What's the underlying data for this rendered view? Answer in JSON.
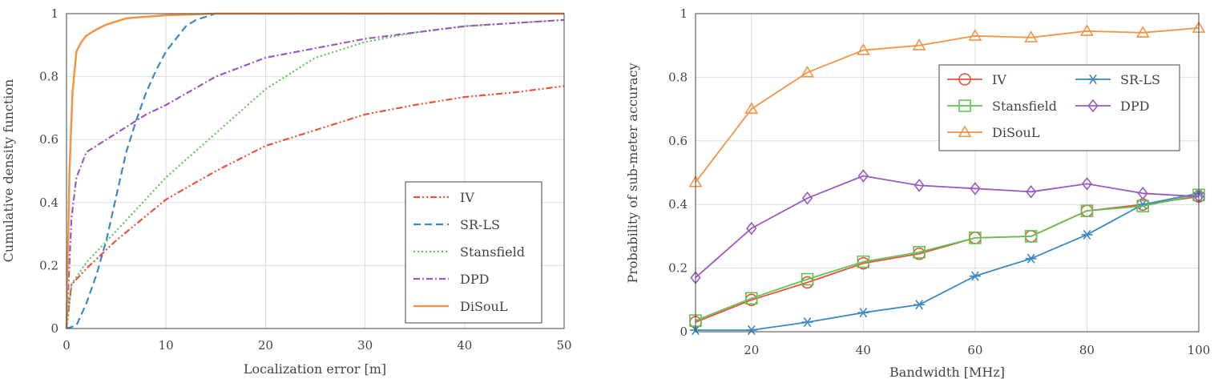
{
  "chart_data": [
    {
      "type": "line",
      "title": "",
      "xlabel": "Localization error [m]",
      "ylabel": "Cumulative density function",
      "xlim": [
        0,
        50
      ],
      "ylim": [
        0,
        1
      ],
      "xticks": [
        0,
        10,
        20,
        30,
        40,
        50
      ],
      "yticks": [
        0,
        0.2,
        0.4,
        0.6,
        0.8,
        1
      ],
      "grid": true,
      "legend_position": "bottom-right",
      "series": [
        {
          "name": "IV",
          "color": "#e8533b",
          "dash": "dash-dot-dot",
          "x": [
            0,
            0.5,
            2,
            5,
            10,
            15,
            20,
            25,
            30,
            35,
            40,
            45,
            50
          ],
          "y": [
            0,
            0.14,
            0.19,
            0.28,
            0.41,
            0.5,
            0.58,
            0.63,
            0.68,
            0.71,
            0.735,
            0.75,
            0.77
          ]
        },
        {
          "name": "SR-LS",
          "color": "#3a89c4",
          "dash": "dashed",
          "x": [
            0,
            1,
            2,
            3,
            4,
            5,
            6,
            7,
            8,
            9,
            10,
            11,
            12,
            13,
            14,
            15,
            20,
            30,
            50
          ],
          "y": [
            0,
            0.01,
            0.08,
            0.17,
            0.28,
            0.42,
            0.56,
            0.66,
            0.75,
            0.82,
            0.88,
            0.92,
            0.96,
            0.98,
            0.99,
            1.0,
            1.0,
            1.0,
            1.0
          ]
        },
        {
          "name": "Stansfield",
          "color": "#63c256",
          "dash": "dotted",
          "x": [
            0,
            0.5,
            2,
            5,
            10,
            15,
            20,
            25,
            30,
            35,
            40,
            45,
            50
          ],
          "y": [
            0,
            0.14,
            0.21,
            0.31,
            0.48,
            0.62,
            0.76,
            0.86,
            0.91,
            0.94,
            0.96,
            0.97,
            0.98
          ]
        },
        {
          "name": "DPD",
          "color": "#9c59c0",
          "dash": "dash-dot",
          "x": [
            0,
            0.5,
            1,
            2,
            4,
            6,
            8,
            10,
            15,
            20,
            25,
            30,
            35,
            40,
            45,
            50
          ],
          "y": [
            0,
            0.35,
            0.48,
            0.56,
            0.6,
            0.64,
            0.68,
            0.71,
            0.8,
            0.86,
            0.89,
            0.92,
            0.94,
            0.96,
            0.97,
            0.98
          ]
        },
        {
          "name": "DiSouL",
          "color": "#f39344",
          "dash": "solid",
          "x": [
            0,
            0.3,
            0.6,
            1,
            1.5,
            2,
            3,
            4,
            5,
            6,
            8,
            10,
            15,
            50
          ],
          "y": [
            0,
            0.5,
            0.75,
            0.88,
            0.91,
            0.93,
            0.95,
            0.965,
            0.975,
            0.985,
            0.99,
            0.995,
            1.0,
            1.0
          ]
        }
      ]
    },
    {
      "type": "line",
      "title": "",
      "xlabel": "Bandwidth [MHz]",
      "ylabel": "Probability of sub-meter accuracy",
      "xlim": [
        10,
        100
      ],
      "ylim": [
        0,
        1
      ],
      "xticks": [
        20,
        40,
        60,
        80,
        100
      ],
      "yticks": [
        0,
        0.2,
        0.4,
        0.6,
        0.8,
        1
      ],
      "grid": true,
      "legend_position": "top-right",
      "x": [
        10,
        20,
        30,
        40,
        50,
        60,
        70,
        80,
        90,
        100
      ],
      "series": [
        {
          "name": "IV",
          "color": "#e8533b",
          "marker": "circle",
          "values": [
            0.03,
            0.1,
            0.155,
            0.215,
            0.245,
            0.295,
            0.3,
            0.38,
            0.4,
            0.425
          ]
        },
        {
          "name": "SR-LS",
          "color": "#3a89c4",
          "marker": "star",
          "values": [
            0.005,
            0.005,
            0.03,
            0.06,
            0.085,
            0.175,
            0.23,
            0.305,
            0.4,
            0.435
          ]
        },
        {
          "name": "Stansfield",
          "color": "#63c256",
          "marker": "square",
          "values": [
            0.035,
            0.105,
            0.165,
            0.22,
            0.25,
            0.295,
            0.3,
            0.38,
            0.395,
            0.43
          ]
        },
        {
          "name": "DPD",
          "color": "#9c59c0",
          "marker": "diamond",
          "values": [
            0.17,
            0.325,
            0.42,
            0.49,
            0.46,
            0.45,
            0.44,
            0.465,
            0.435,
            0.425
          ]
        },
        {
          "name": "DiSouL",
          "color": "#f39344",
          "marker": "triangle",
          "values": [
            0.47,
            0.7,
            0.815,
            0.885,
            0.9,
            0.93,
            0.925,
            0.945,
            0.94,
            0.955
          ]
        }
      ]
    }
  ]
}
